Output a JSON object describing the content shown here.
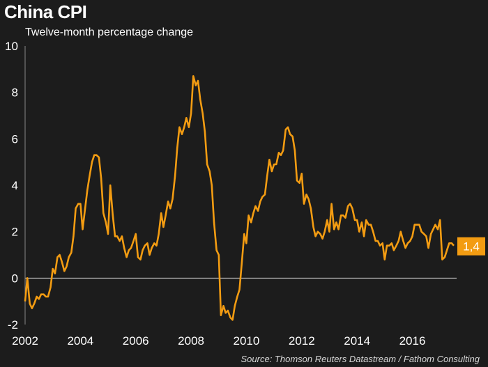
{
  "chart_data": {
    "type": "line",
    "title": "China CPI",
    "subtitle": "Twelve-month percentage change",
    "source": "Source: Thomson Reuters Datastream / Fathom Consulting",
    "xlabel": "",
    "ylabel": "",
    "xlim": [
      2002.0,
      2017.6
    ],
    "ylim": [
      -2,
      10
    ],
    "xticks": [
      "2002",
      "2004",
      "2006",
      "2008",
      "2010",
      "2012",
      "2014",
      "2016"
    ],
    "yticks": [
      "-2",
      "0",
      "2",
      "4",
      "6",
      "8",
      "10"
    ],
    "zero_line": true,
    "grid": false,
    "line_color": "#f39c12",
    "end_label": "1,4",
    "series": [
      {
        "x": [
          2002.0,
          2002.08,
          2002.17,
          2002.25,
          2002.33,
          2002.42,
          2002.5,
          2002.58,
          2002.67,
          2002.75,
          2002.83,
          2002.92,
          2003.0,
          2003.08,
          2003.17,
          2003.25,
          2003.33,
          2003.42,
          2003.5,
          2003.58,
          2003.67,
          2003.75,
          2003.83,
          2003.92,
          2004.0,
          2004.08,
          2004.17,
          2004.25,
          2004.33,
          2004.42,
          2004.5,
          2004.58,
          2004.67,
          2004.75,
          2004.83,
          2004.92,
          2005.0,
          2005.08,
          2005.17,
          2005.25,
          2005.33,
          2005.42,
          2005.5,
          2005.58,
          2005.67,
          2005.75,
          2005.83,
          2005.92,
          2006.0,
          2006.08,
          2006.17,
          2006.25,
          2006.33,
          2006.42,
          2006.5,
          2006.58,
          2006.67,
          2006.75,
          2006.83,
          2006.92,
          2007.0,
          2007.08,
          2007.17,
          2007.25,
          2007.33,
          2007.42,
          2007.5,
          2007.58,
          2007.67,
          2007.75,
          2007.83,
          2007.92,
          2008.0,
          2008.08,
          2008.17,
          2008.25,
          2008.33,
          2008.42,
          2008.5,
          2008.58,
          2008.67,
          2008.75,
          2008.83,
          2008.92,
          2009.0,
          2009.08,
          2009.17,
          2009.25,
          2009.33,
          2009.42,
          2009.5,
          2009.58,
          2009.67,
          2009.75,
          2009.83,
          2009.92,
          2010.0,
          2010.08,
          2010.17,
          2010.25,
          2010.33,
          2010.42,
          2010.5,
          2010.58,
          2010.67,
          2010.75,
          2010.83,
          2010.92,
          2011.0,
          2011.08,
          2011.17,
          2011.25,
          2011.33,
          2011.42,
          2011.5,
          2011.58,
          2011.67,
          2011.75,
          2011.83,
          2011.92,
          2012.0,
          2012.08,
          2012.17,
          2012.25,
          2012.33,
          2012.42,
          2012.5,
          2012.58,
          2012.67,
          2012.75,
          2012.83,
          2012.92,
          2013.0,
          2013.08,
          2013.17,
          2013.25,
          2013.33,
          2013.42,
          2013.5,
          2013.58,
          2013.67,
          2013.75,
          2013.83,
          2013.92,
          2014.0,
          2014.08,
          2014.17,
          2014.25,
          2014.33,
          2014.42,
          2014.5,
          2014.58,
          2014.67,
          2014.75,
          2014.83,
          2014.92,
          2015.0,
          2015.08,
          2015.17,
          2015.25,
          2015.33,
          2015.42,
          2015.5,
          2015.58,
          2015.67,
          2015.75,
          2015.83,
          2015.92,
          2016.0,
          2016.08,
          2016.17,
          2016.25,
          2016.33,
          2016.42,
          2016.5,
          2016.58,
          2016.67,
          2016.75,
          2016.83,
          2016.92,
          2017.0,
          2017.08,
          2017.17,
          2017.25,
          2017.33,
          2017.42,
          2017.5
        ],
        "values": [
          -1.0,
          0.0,
          -1.1,
          -1.3,
          -1.1,
          -0.8,
          -0.9,
          -0.7,
          -0.7,
          -0.8,
          -0.8,
          -0.4,
          0.4,
          0.2,
          0.9,
          1.0,
          0.7,
          0.3,
          0.5,
          0.9,
          1.1,
          1.8,
          3.0,
          3.2,
          3.2,
          2.1,
          3.0,
          3.8,
          4.4,
          5.0,
          5.3,
          5.3,
          5.2,
          4.3,
          2.8,
          2.4,
          1.9,
          4.0,
          2.7,
          1.8,
          1.8,
          1.6,
          1.8,
          1.3,
          0.9,
          1.2,
          1.3,
          1.6,
          1.9,
          0.9,
          0.8,
          1.2,
          1.4,
          1.5,
          1.0,
          1.3,
          1.5,
          1.4,
          1.9,
          2.8,
          2.2,
          2.7,
          3.3,
          3.0,
          3.4,
          4.4,
          5.6,
          6.5,
          6.2,
          6.5,
          6.9,
          6.5,
          7.1,
          8.7,
          8.3,
          8.5,
          7.7,
          7.1,
          6.3,
          4.9,
          4.6,
          4.0,
          2.4,
          1.2,
          1.0,
          -1.6,
          -1.2,
          -1.5,
          -1.4,
          -1.7,
          -1.8,
          -1.2,
          -0.8,
          -0.5,
          0.6,
          1.9,
          1.5,
          2.7,
          2.4,
          2.8,
          3.1,
          2.9,
          3.3,
          3.5,
          3.6,
          4.4,
          5.1,
          4.6,
          4.9,
          4.9,
          5.4,
          5.3,
          5.5,
          6.4,
          6.5,
          6.2,
          6.1,
          5.5,
          4.2,
          4.1,
          4.5,
          3.2,
          3.6,
          3.4,
          3.0,
          2.2,
          1.8,
          2.0,
          1.9,
          1.7,
          2.0,
          2.5,
          2.0,
          3.2,
          2.1,
          2.4,
          2.1,
          2.7,
          2.7,
          2.6,
          3.1,
          3.2,
          3.0,
          2.5,
          2.5,
          2.0,
          2.4,
          1.8,
          2.5,
          2.3,
          2.3,
          2.0,
          1.6,
          1.6,
          1.4,
          1.5,
          0.8,
          1.4,
          1.4,
          1.5,
          1.2,
          1.4,
          1.6,
          2.0,
          1.6,
          1.3,
          1.5,
          1.6,
          1.8,
          2.3,
          2.3,
          2.3,
          2.0,
          1.9,
          1.8,
          1.3,
          1.9,
          2.1,
          2.3,
          2.1,
          2.5,
          0.8,
          0.9,
          1.2,
          1.5,
          1.5,
          1.4
        ]
      }
    ]
  }
}
